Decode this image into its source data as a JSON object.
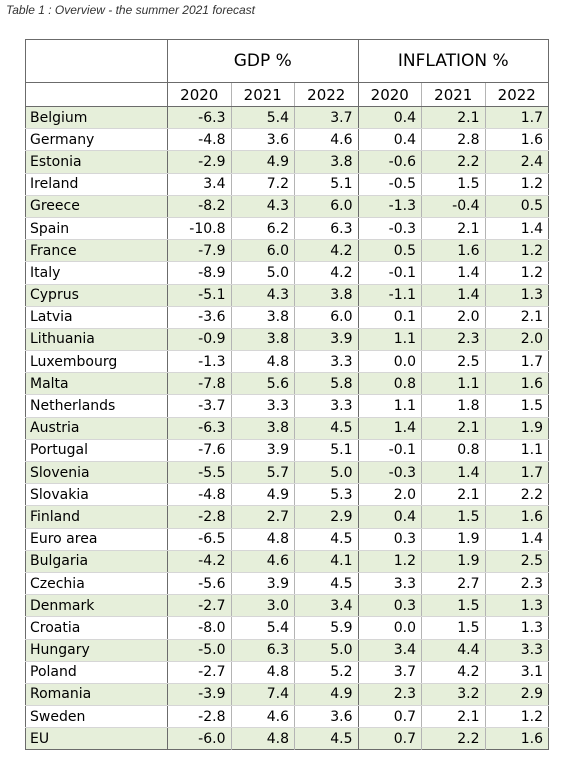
{
  "caption": "Table 1 : Overview - the summer 2021 forecast",
  "headers": {
    "gdp": "GDP %",
    "inflation": "INFLATION %",
    "years": [
      "2020",
      "2021",
      "2022",
      "2020",
      "2021",
      "2022"
    ]
  },
  "colors": {
    "shaded_row": "#e6efda",
    "border": "#6b6b6b"
  },
  "rows": [
    {
      "country": "Belgium",
      "v": [
        "-6.3",
        "5.4",
        "3.7",
        "0.4",
        "2.1",
        "1.7"
      ],
      "shaded": true
    },
    {
      "country": "Germany",
      "v": [
        "-4.8",
        "3.6",
        "4.6",
        "0.4",
        "2.8",
        "1.6"
      ],
      "shaded": false
    },
    {
      "country": "Estonia",
      "v": [
        "-2.9",
        "4.9",
        "3.8",
        "-0.6",
        "2.2",
        "2.4"
      ],
      "shaded": true
    },
    {
      "country": "Ireland",
      "v": [
        "3.4",
        "7.2",
        "5.1",
        "-0.5",
        "1.5",
        "1.2"
      ],
      "shaded": false
    },
    {
      "country": "Greece",
      "v": [
        "-8.2",
        "4.3",
        "6.0",
        "-1.3",
        "-0.4",
        "0.5"
      ],
      "shaded": true
    },
    {
      "country": "Spain",
      "v": [
        "-10.8",
        "6.2",
        "6.3",
        "-0.3",
        "2.1",
        "1.4"
      ],
      "shaded": false
    },
    {
      "country": "France",
      "v": [
        "-7.9",
        "6.0",
        "4.2",
        "0.5",
        "1.6",
        "1.2"
      ],
      "shaded": true
    },
    {
      "country": "Italy",
      "v": [
        "-8.9",
        "5.0",
        "4.2",
        "-0.1",
        "1.4",
        "1.2"
      ],
      "shaded": false
    },
    {
      "country": "Cyprus",
      "v": [
        "-5.1",
        "4.3",
        "3.8",
        "-1.1",
        "1.4",
        "1.3"
      ],
      "shaded": true
    },
    {
      "country": "Latvia",
      "v": [
        "-3.6",
        "3.8",
        "6.0",
        "0.1",
        "2.0",
        "2.1"
      ],
      "shaded": false
    },
    {
      "country": "Lithuania",
      "v": [
        "-0.9",
        "3.8",
        "3.9",
        "1.1",
        "2.3",
        "2.0"
      ],
      "shaded": true
    },
    {
      "country": "Luxembourg",
      "v": [
        "-1.3",
        "4.8",
        "3.3",
        "0.0",
        "2.5",
        "1.7"
      ],
      "shaded": false
    },
    {
      "country": "Malta",
      "v": [
        "-7.8",
        "5.6",
        "5.8",
        "0.8",
        "1.1",
        "1.6"
      ],
      "shaded": true
    },
    {
      "country": "Netherlands",
      "v": [
        "-3.7",
        "3.3",
        "3.3",
        "1.1",
        "1.8",
        "1.5"
      ],
      "shaded": false
    },
    {
      "country": "Austria",
      "v": [
        "-6.3",
        "3.8",
        "4.5",
        "1.4",
        "2.1",
        "1.9"
      ],
      "shaded": true
    },
    {
      "country": "Portugal",
      "v": [
        "-7.6",
        "3.9",
        "5.1",
        "-0.1",
        "0.8",
        "1.1"
      ],
      "shaded": false
    },
    {
      "country": "Slovenia",
      "v": [
        "-5.5",
        "5.7",
        "5.0",
        "-0.3",
        "1.4",
        "1.7"
      ],
      "shaded": true
    },
    {
      "country": "Slovakia",
      "v": [
        "-4.8",
        "4.9",
        "5.3",
        "2.0",
        "2.1",
        "2.2"
      ],
      "shaded": false
    },
    {
      "country": "Finland",
      "v": [
        "-2.8",
        "2.7",
        "2.9",
        "0.4",
        "1.5",
        "1.6"
      ],
      "shaded": true
    },
    {
      "country": "Euro area",
      "v": [
        "-6.5",
        "4.8",
        "4.5",
        "0.3",
        "1.9",
        "1.4"
      ],
      "shaded": false,
      "rule": true
    },
    {
      "country": "Bulgaria",
      "v": [
        "-4.2",
        "4.6",
        "4.1",
        "1.2",
        "1.9",
        "2.5"
      ],
      "shaded": true,
      "rule": true
    },
    {
      "country": "Czechia",
      "v": [
        "-5.6",
        "3.9",
        "4.5",
        "3.3",
        "2.7",
        "2.3"
      ],
      "shaded": false
    },
    {
      "country": "Denmark",
      "v": [
        "-2.7",
        "3.0",
        "3.4",
        "0.3",
        "1.5",
        "1.3"
      ],
      "shaded": true
    },
    {
      "country": "Croatia",
      "v": [
        "-8.0",
        "5.4",
        "5.9",
        "0.0",
        "1.5",
        "1.3"
      ],
      "shaded": false
    },
    {
      "country": "Hungary",
      "v": [
        "-5.0",
        "6.3",
        "5.0",
        "3.4",
        "4.4",
        "3.3"
      ],
      "shaded": true
    },
    {
      "country": "Poland",
      "v": [
        "-2.7",
        "4.8",
        "5.2",
        "3.7",
        "4.2",
        "3.1"
      ],
      "shaded": false
    },
    {
      "country": "Romania",
      "v": [
        "-3.9",
        "7.4",
        "4.9",
        "2.3",
        "3.2",
        "2.9"
      ],
      "shaded": true
    },
    {
      "country": "Sweden",
      "v": [
        "-2.8",
        "4.6",
        "3.6",
        "0.7",
        "2.1",
        "1.2"
      ],
      "shaded": false
    },
    {
      "country": "EU",
      "v": [
        "-6.0",
        "4.8",
        "4.5",
        "0.7",
        "2.2",
        "1.6"
      ],
      "shaded": true,
      "rule": true
    }
  ]
}
